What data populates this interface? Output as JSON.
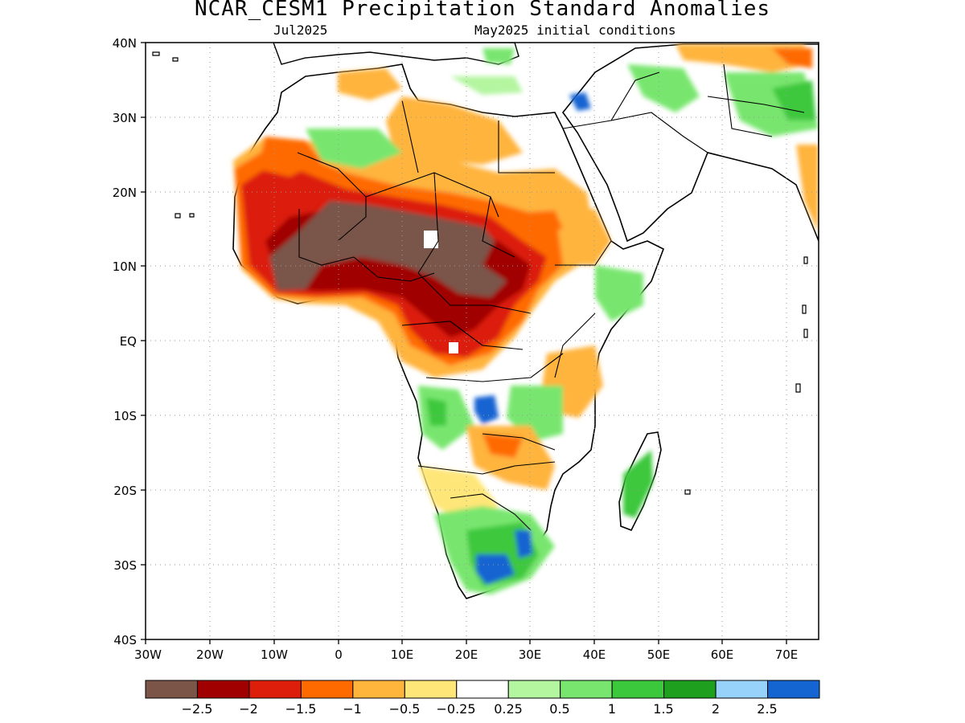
{
  "title": "NCAR_CESM1 Precipitation Standard Anomalies",
  "valid_month": "Jul2025",
  "initial_conditions": "May2025 initial conditions",
  "lat_labels": [
    "40N",
    "30N",
    "20N",
    "10N",
    "EQ",
    "10S",
    "20S",
    "30S",
    "40S"
  ],
  "lon_labels": [
    "30W",
    "20W",
    "10W",
    "0",
    "10E",
    "20E",
    "30E",
    "40E",
    "50E",
    "60E",
    "70E"
  ],
  "legend": {
    "colors": [
      "#7a5548",
      "#a00000",
      "#dc1e0a",
      "#ff6a00",
      "#ffb43c",
      "#ffe678",
      "#ffffff",
      "#b4f5a0",
      "#78e66e",
      "#3cc83c",
      "#1ea01e",
      "#96d2fa",
      "#1464d2"
    ],
    "labels": [
      "−2.5",
      "−2",
      "−1.5",
      "−1",
      "−0.5",
      "−0.25",
      "0.25",
      "0.5",
      "1",
      "1.5",
      "2",
      "2.5"
    ]
  },
  "chart_data": {
    "type": "heatmap",
    "title": "NCAR_CESM1 Precipitation Standard Anomalies",
    "subtitle": [
      "Jul2025",
      "May2025 initial conditions"
    ],
    "xlim": [
      -30,
      75
    ],
    "ylim": [
      -40,
      40
    ],
    "x_ticks": [
      "30W",
      "20W",
      "10W",
      "0",
      "10E",
      "20E",
      "30E",
      "40E",
      "50E",
      "60E",
      "70E"
    ],
    "y_ticks": [
      "40N",
      "30N",
      "20N",
      "10N",
      "EQ",
      "10S",
      "20S",
      "30S",
      "40S"
    ],
    "grid": true,
    "colorbar_levels": [
      -2.5,
      -2,
      -1.5,
      -1,
      -0.5,
      -0.25,
      0.25,
      0.5,
      1,
      1.5,
      2,
      2.5
    ],
    "colorbar_position": "bottom"
  }
}
